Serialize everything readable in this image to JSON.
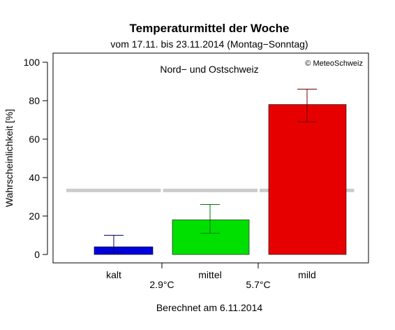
{
  "chart_data": {
    "type": "bar",
    "title": "Temperaturmittel der Woche",
    "subtitle": "vom 17.11. bis 23.11.2014 (Montag−Sonntag)",
    "region_label": "Nord− und Ostschweiz",
    "copyright": "© MeteoSchweiz",
    "ylabel": "Wahrscheinlichkeit [%]",
    "footer": "Berechnet am 6.11.2014",
    "ylim": [
      0,
      100
    ],
    "yticks": [
      "0",
      "20",
      "40",
      "60",
      "80",
      "100"
    ],
    "categories": [
      "kalt",
      "mittel",
      "mild"
    ],
    "thresholds": [
      "2.9°C",
      "5.7°C"
    ],
    "values": [
      4,
      18,
      78
    ],
    "error_low": [
      1,
      11,
      69
    ],
    "error_high": [
      10,
      26,
      86
    ],
    "reference_value": 33.3,
    "colors": {
      "bars": [
        "#0000dd",
        "#00e000",
        "#e60000"
      ],
      "errorbars": [
        "#00006e",
        "#00730e",
        "#730000"
      ],
      "reference": "#cccccc"
    }
  }
}
